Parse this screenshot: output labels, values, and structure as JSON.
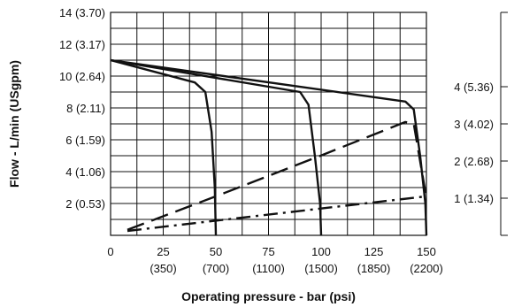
{
  "chart_data": {
    "type": "line",
    "xlabel": "Operating pressure - bar (psi)",
    "ylabel": "Flow - L/min (USgpm)",
    "right_ylabel": "",
    "xlim": [
      0,
      150
    ],
    "ylim": [
      0,
      14
    ],
    "right_ylim": [
      0,
      6
    ],
    "grid": true,
    "x_ticks": [
      {
        "value": 0,
        "label": "0",
        "sublabel": ""
      },
      {
        "value": 25,
        "label": "25",
        "sublabel": "(350)"
      },
      {
        "value": 50,
        "label": "50",
        "sublabel": "(700)"
      },
      {
        "value": 75,
        "label": "75",
        "sublabel": "(1100)"
      },
      {
        "value": 100,
        "label": "100",
        "sublabel": "(1500)"
      },
      {
        "value": 125,
        "label": "125",
        "sublabel": "(1850)"
      },
      {
        "value": 150,
        "label": "150",
        "sublabel": "(2200)"
      }
    ],
    "y_ticks": [
      {
        "value": 2,
        "label": "2 (0.53)"
      },
      {
        "value": 4,
        "label": "4 (1.06)"
      },
      {
        "value": 6,
        "label": "6 (1.59)"
      },
      {
        "value": 8,
        "label": "8 (2.11)"
      },
      {
        "value": 10,
        "label": "10 (2.64)"
      },
      {
        "value": 12,
        "label": "12 (3.17)"
      },
      {
        "value": 14,
        "label": "14 (3.70)"
      }
    ],
    "right_ticks": [
      {
        "value": 1,
        "label": "1 (1.34)"
      },
      {
        "value": 2,
        "label": "2 (2.68)"
      },
      {
        "value": 3,
        "label": "3 (4.02)"
      },
      {
        "value": 4,
        "label": "4 (5.36)"
      }
    ],
    "series": [
      {
        "style": "solid",
        "axis": "left",
        "points": [
          [
            0,
            11
          ],
          [
            40,
            9.6
          ],
          [
            45,
            9.0
          ],
          [
            48,
            6.5
          ],
          [
            49.5,
            3
          ],
          [
            50,
            0
          ]
        ]
      },
      {
        "style": "solid",
        "axis": "left",
        "points": [
          [
            0,
            11
          ],
          [
            90,
            9.0
          ],
          [
            94,
            8.2
          ],
          [
            97,
            5
          ],
          [
            99.5,
            2
          ],
          [
            100,
            0
          ]
        ]
      },
      {
        "style": "solid",
        "axis": "left",
        "points": [
          [
            0,
            11
          ],
          [
            140,
            8.4
          ],
          [
            144,
            7.9
          ],
          [
            147,
            5
          ],
          [
            149.5,
            2
          ],
          [
            150,
            0
          ]
        ]
      },
      {
        "style": "long-dash",
        "axis": "right",
        "points": [
          [
            8,
            0.15
          ],
          [
            50,
            1.05
          ],
          [
            100,
            2.15
          ],
          [
            140,
            3.05
          ],
          [
            144,
            3.0
          ],
          [
            150,
            1.0
          ]
        ]
      },
      {
        "style": "dash-dot",
        "axis": "right",
        "points": [
          [
            8,
            0.12
          ],
          [
            150,
            1.05
          ]
        ]
      }
    ]
  }
}
